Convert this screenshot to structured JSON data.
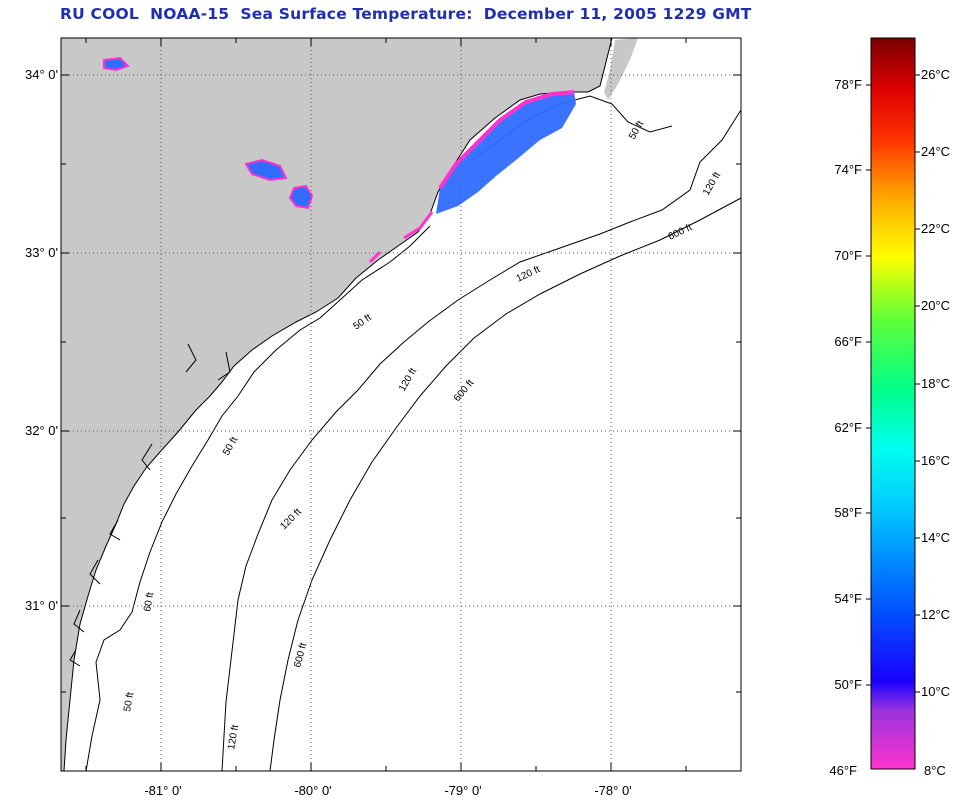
{
  "title": "RU COOL  NOAA-15  Sea Surface Temperature:  December 11, 2005 1229 GMT",
  "lat_labels": [
    "34° 0'",
    "33° 0'",
    "32° 0'",
    "31° 0'"
  ],
  "lon_labels": [
    "-81° 0'",
    "-80° 0'",
    "-79° 0'",
    "-78° 0'"
  ],
  "contour_labels": [
    "50 ft",
    "120 ft",
    "600 ft",
    "50 ft",
    "120 ft",
    "600 ft",
    "50 ft",
    "120 ft",
    "600 ft",
    "60 ft",
    "120 ft",
    "50 ft",
    "120 ft"
  ],
  "colorbar": {
    "fahrenheit": [
      "78°F",
      "74°F",
      "70°F",
      "66°F",
      "62°F",
      "58°F",
      "54°F",
      "50°F",
      "46°F"
    ],
    "celsius": [
      "26°C",
      "24°C",
      "22°C",
      "20°C",
      "18°C",
      "16°C",
      "14°C",
      "12°C",
      "10°C",
      "8°C"
    ]
  },
  "colors": {
    "title": "#1f2fb0",
    "land": "#c8c8c8",
    "ocean": "#ffffff"
  }
}
